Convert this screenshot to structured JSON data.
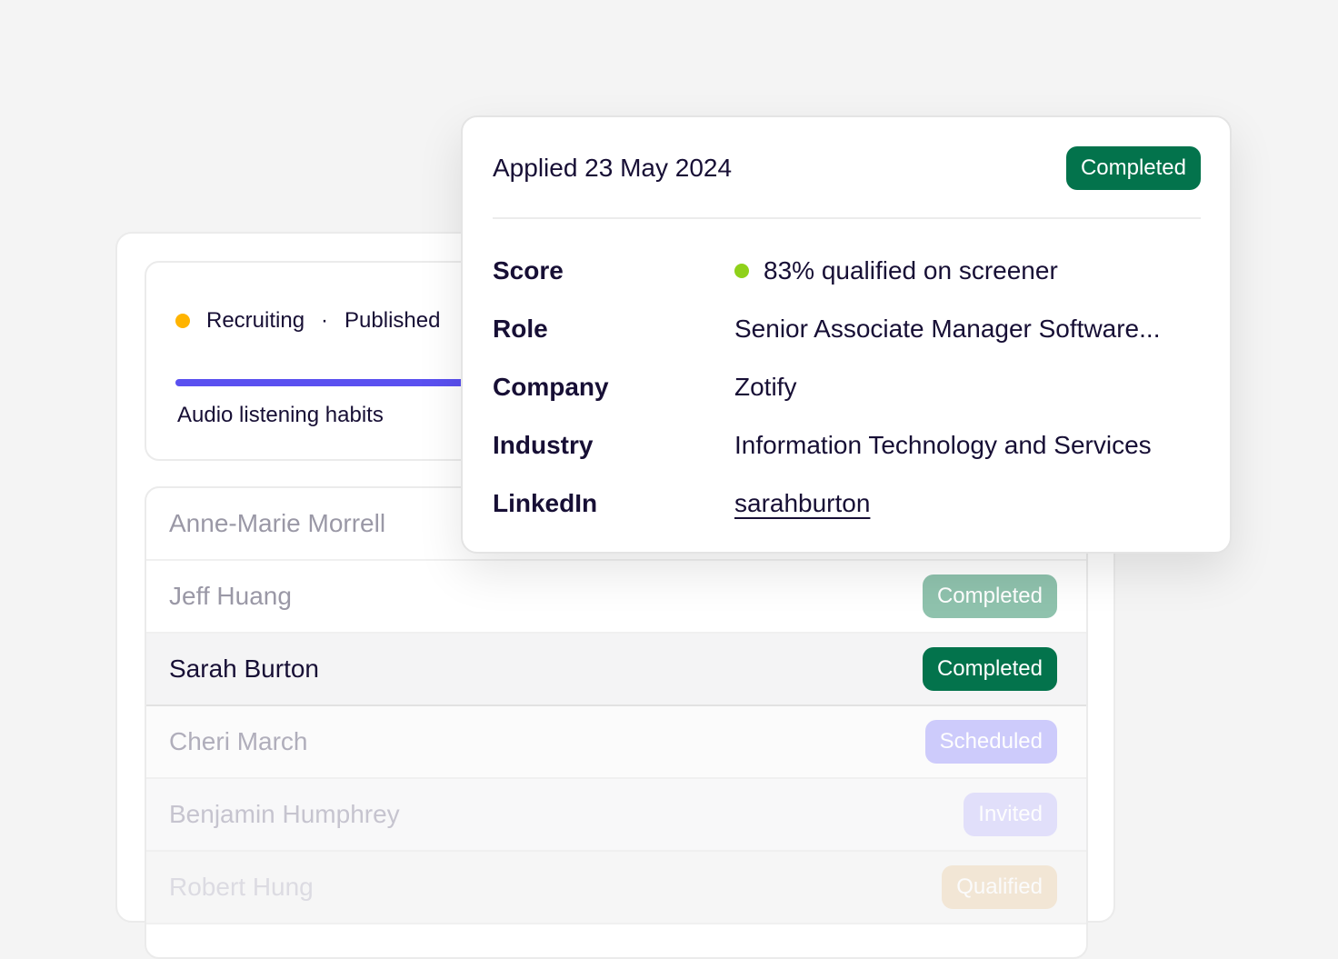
{
  "study": {
    "status": "Recruiting",
    "status_color": "#ffb400",
    "separator": "·",
    "published": "Published",
    "progress_color": "#5a50f0",
    "title": "Audio listening habits"
  },
  "participants": [
    {
      "name": "Anne-Marie Morrell",
      "status": "",
      "badge_color": ""
    },
    {
      "name": "Jeff Huang",
      "status": "Completed",
      "badge_color": "#8fc2ad"
    },
    {
      "name": "Sarah Burton",
      "status": "Completed",
      "badge_color": "#03734c"
    },
    {
      "name": "Cheri March",
      "status": "Scheduled",
      "badge_color": "#c9c6fb"
    },
    {
      "name": "Benjamin Humphrey",
      "status": "Invited",
      "badge_color": "#dcdafb"
    },
    {
      "name": "Robert Hung",
      "status": "Qualified",
      "badge_color": "#f6ead8"
    }
  ],
  "popover": {
    "applied": "Applied 23 May 2024",
    "status": "Completed",
    "status_color": "#03734c",
    "score_dot_color": "#8fd11a",
    "fields": [
      {
        "label": "Score",
        "value": "83% qualified on screener"
      },
      {
        "label": "Role",
        "value": "Senior Associate Manager Software..."
      },
      {
        "label": "Company",
        "value": "Zotify"
      },
      {
        "label": "Industry",
        "value": "Information Technology and Services"
      },
      {
        "label": "LinkedIn",
        "value": "sarahburton"
      }
    ]
  }
}
